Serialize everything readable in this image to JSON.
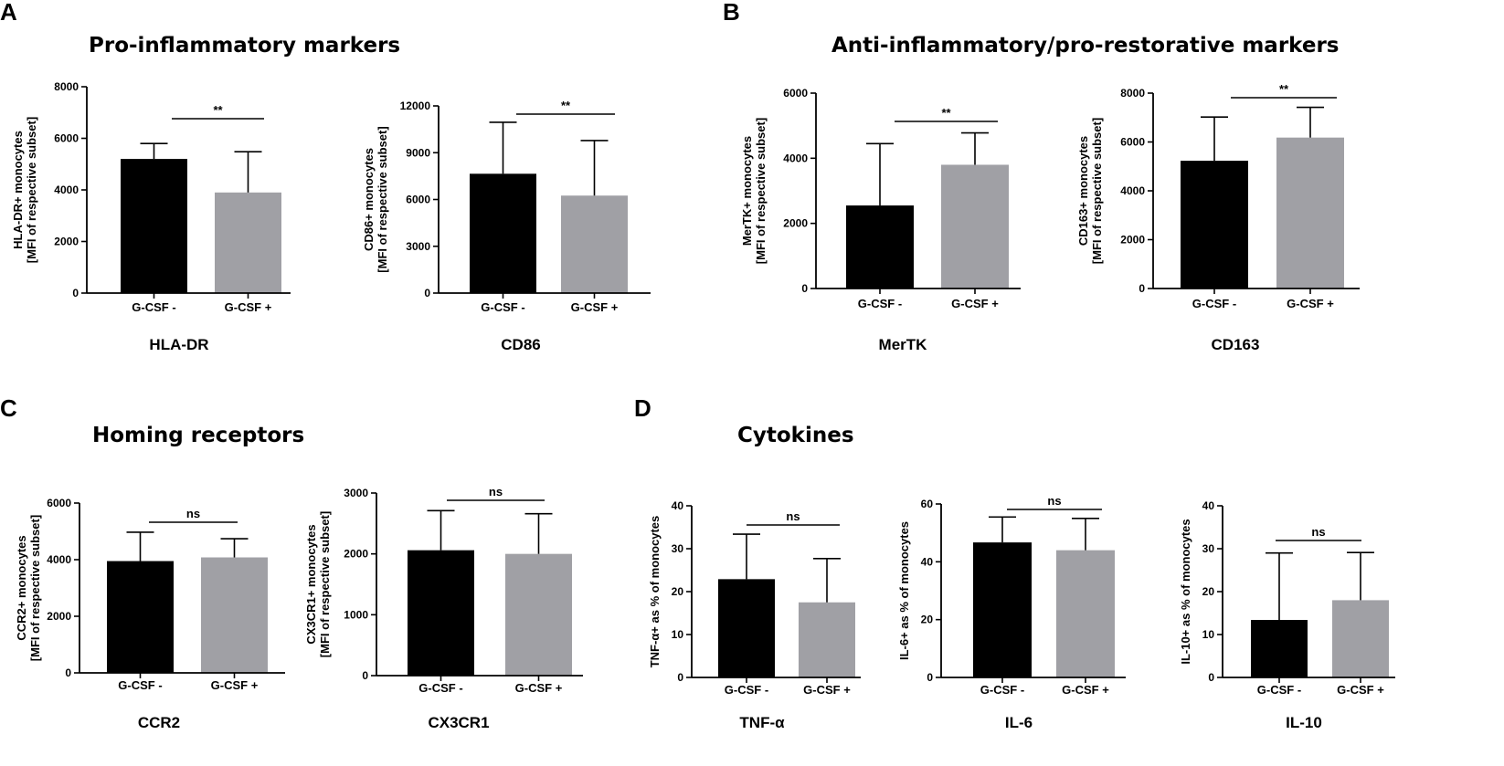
{
  "panels": [
    {
      "letter": "A",
      "title": "Pro-inflammatory markers"
    },
    {
      "letter": "B",
      "title": "Anti-inflammatory/pro-restorative markers"
    },
    {
      "letter": "C",
      "title": "Homing receptors"
    },
    {
      "letter": "D",
      "title": "Cytokines"
    }
  ],
  "colors": {
    "g_csf_minus": "#000000",
    "g_csf_plus": "#a0a0a5",
    "axis": "#000000"
  },
  "chart_data": [
    {
      "type": "bar",
      "panel": "A",
      "title": "HLA-DR",
      "ylabel_lines": [
        "HLA-DR+ monocytes",
        "[MFI of respective subset]"
      ],
      "categories": [
        "G-CSF -",
        "G-CSF +"
      ],
      "values": [
        5200,
        3900
      ],
      "errors": [
        5800,
        5480
      ],
      "ylim": [
        0,
        8000
      ],
      "yticks": [
        0,
        2000,
        4000,
        6000,
        8000
      ],
      "significance": "**"
    },
    {
      "type": "bar",
      "panel": "A",
      "title": "CD86",
      "ylabel_lines": [
        "CD86+ monocytes",
        "[MFI of respective subset]"
      ],
      "categories": [
        "G-CSF -",
        "G-CSF +"
      ],
      "values": [
        7650,
        6250
      ],
      "errors": [
        10950,
        9780
      ],
      "ylim": [
        0,
        12000
      ],
      "yticks": [
        0,
        3000,
        6000,
        9000,
        12000
      ],
      "significance": "**"
    },
    {
      "type": "bar",
      "panel": "B",
      "title": "MerTK",
      "ylabel_lines": [
        "MerTK+ monocytes",
        "[MFI of respective subset]"
      ],
      "categories": [
        "G-CSF -",
        "G-CSF +"
      ],
      "values": [
        2550,
        3800
      ],
      "errors": [
        4450,
        4780
      ],
      "ylim": [
        0,
        6000
      ],
      "yticks": [
        0,
        2000,
        4000,
        6000
      ],
      "significance": "**"
    },
    {
      "type": "bar",
      "panel": "B",
      "title": "CD163",
      "ylabel_lines": [
        "CD163+ monocytes",
        "[MFI of respective subset]"
      ],
      "categories": [
        "G-CSF -",
        "G-CSF +"
      ],
      "values": [
        5230,
        6180
      ],
      "errors": [
        7020,
        7420
      ],
      "ylim": [
        0,
        8000
      ],
      "yticks": [
        0,
        2000,
        4000,
        6000,
        8000
      ],
      "significance": "**"
    },
    {
      "type": "bar",
      "panel": "C",
      "title": "CCR2",
      "ylabel_lines": [
        "CCR2+ monocytes",
        "[MFI of respective subset]"
      ],
      "categories": [
        "G-CSF -",
        "G-CSF +"
      ],
      "values": [
        3950,
        4080
      ],
      "errors": [
        4970,
        4740
      ],
      "ylim": [
        0,
        6000
      ],
      "yticks": [
        0,
        2000,
        4000,
        6000
      ],
      "significance": "ns"
    },
    {
      "type": "bar",
      "panel": "C",
      "title": "CX3CR1",
      "ylabel_lines": [
        "CX3CR1+ monocytes",
        "[MFI of respective subset]"
      ],
      "categories": [
        "G-CSF -",
        "G-CSF +"
      ],
      "values": [
        2060,
        2000
      ],
      "errors": [
        2710,
        2660
      ],
      "ylim": [
        0,
        3000
      ],
      "yticks": [
        0,
        1000,
        2000,
        3000
      ],
      "significance": "ns"
    },
    {
      "type": "bar",
      "panel": "D",
      "title": "TNF-α",
      "ylabel_lines": [
        "TNF-α+ as % of monocytes"
      ],
      "categories": [
        "G-CSF -",
        "G-CSF +"
      ],
      "values": [
        22.9,
        17.5
      ],
      "errors": [
        33.4,
        27.7
      ],
      "ylim": [
        0,
        40
      ],
      "yticks": [
        0,
        10,
        20,
        30,
        40
      ],
      "significance": "ns"
    },
    {
      "type": "bar",
      "panel": "D",
      "title": "IL-6",
      "ylabel_lines": [
        "IL-6+ as % of monocytes"
      ],
      "categories": [
        "G-CSF -",
        "G-CSF +"
      ],
      "values": [
        46.7,
        44.0
      ],
      "errors": [
        55.5,
        55.0
      ],
      "ylim": [
        0,
        60
      ],
      "yticks": [
        0,
        20,
        40,
        60
      ],
      "significance": "ns"
    },
    {
      "type": "bar",
      "panel": "D",
      "title": "IL-10",
      "ylabel_lines": [
        "IL-10+ as % of monocytes"
      ],
      "categories": [
        "G-CSF -",
        "G-CSF +"
      ],
      "values": [
        13.4,
        18.0
      ],
      "errors": [
        29.0,
        29.1
      ],
      "ylim": [
        0,
        40
      ],
      "yticks": [
        0,
        10,
        20,
        30,
        40
      ],
      "significance": "ns"
    }
  ]
}
